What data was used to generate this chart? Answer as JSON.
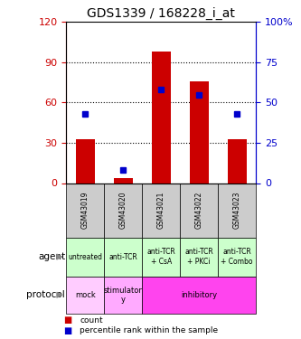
{
  "title": "GDS1339 / 168228_i_at",
  "samples": [
    "GSM43019",
    "GSM43020",
    "GSM43021",
    "GSM43022",
    "GSM43023"
  ],
  "counts": [
    33,
    4,
    98,
    76,
    33
  ],
  "percentiles": [
    43,
    8,
    58,
    55,
    43
  ],
  "ylim_left": [
    0,
    120
  ],
  "ylim_right": [
    0,
    100
  ],
  "yticks_left": [
    0,
    30,
    60,
    90,
    120
  ],
  "yticks_right": [
    0,
    25,
    50,
    75,
    100
  ],
  "ytick_labels_left": [
    "0",
    "30",
    "60",
    "90",
    "120"
  ],
  "ytick_labels_right": [
    "0",
    "25",
    "50",
    "75",
    "100%"
  ],
  "agent_labels": [
    "untreated",
    "anti-TCR",
    "anti-TCR\n+ CsA",
    "anti-TCR\n+ PKCi",
    "anti-TCR\n+ Combo"
  ],
  "agent_bg": "#ccffcc",
  "sample_bg": "#cccccc",
  "bar_color": "#cc0000",
  "dot_color": "#0000cc",
  "bar_width": 0.5,
  "protocol_configs": [
    [
      0,
      1,
      "mock",
      "#ffccff"
    ],
    [
      1,
      2,
      "stimulator\ny",
      "#ffaaff"
    ],
    [
      2,
      5,
      "inhibitory",
      "#ff44ee"
    ]
  ],
  "legend_count_color": "#cc0000",
  "legend_pct_color": "#0000cc"
}
